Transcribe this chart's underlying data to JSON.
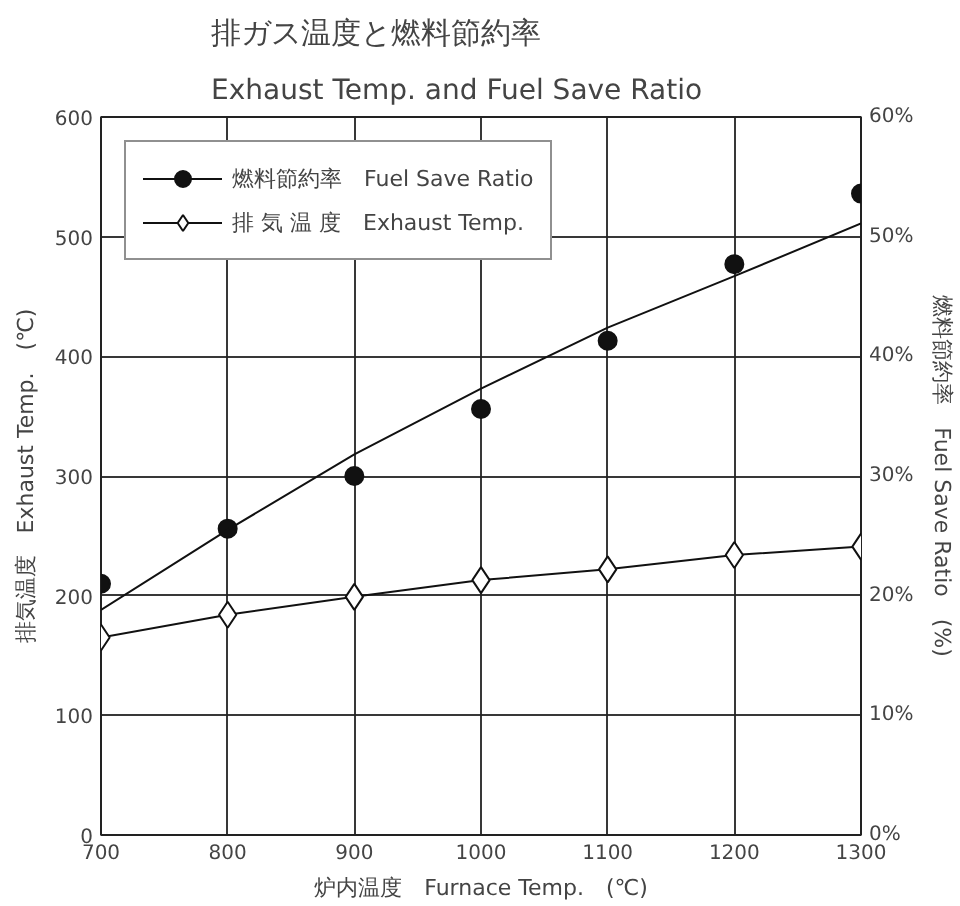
{
  "chart_data": {
    "type": "line",
    "title": "排ガス温度と燃料節約率",
    "subtitle": "Exhaust Temp. and Fuel Save Ratio",
    "xlabel": "炉内温度　Furnace Temp.　(℃)",
    "ylabel": "排気温度　Exhaust Temp.　(℃)",
    "y2label": "燃料節約率　Fuel Save Ratio　(%)",
    "x": [
      700,
      800,
      900,
      1000,
      1100,
      1200,
      1300
    ],
    "series": [
      {
        "name": "燃料節約率　Fuel Save Ratio",
        "type": "scatter",
        "color": "#111111",
        "axis": "y2",
        "marker": "circle",
        "values": [
          21.0,
          25.6,
          30.0,
          35.6,
          41.3,
          47.7,
          53.6
        ]
      },
      {
        "color": "#111111",
        "axis": "y2",
        "marker": "none",
        "values": [
          18.8,
          25.5,
          31.8,
          37.3,
          42.4,
          46.7,
          51.1
        ]
      },
      {
        "name": "排 気 温 度　Exhaust Temp.",
        "color": "#111111",
        "marker": "diamond",
        "values": [
          165,
          184,
          199,
          213,
          222,
          234,
          241
        ]
      }
    ],
    "xlim": [
      700,
      1300
    ],
    "xticks": [
      700,
      800,
      900,
      1000,
      1100,
      1200,
      1300
    ],
    "ylim": [
      0,
      600
    ],
    "yticks": [
      0,
      100,
      200,
      300,
      400,
      500,
      600
    ],
    "y2lim": [
      0,
      60
    ],
    "y2ticks": [
      {
        "value": 0,
        "label": "0%"
      },
      {
        "value": 10,
        "label": "10%"
      },
      {
        "value": 20,
        "label": "20%"
      },
      {
        "value": 30,
        "label": "30%"
      },
      {
        "value": 40,
        "label": "40%"
      },
      {
        "value": 50,
        "label": "50%"
      },
      {
        "value": 60,
        "label": "60%"
      }
    ],
    "grid": true,
    "legend": "top left",
    "line_style": "solid"
  }
}
